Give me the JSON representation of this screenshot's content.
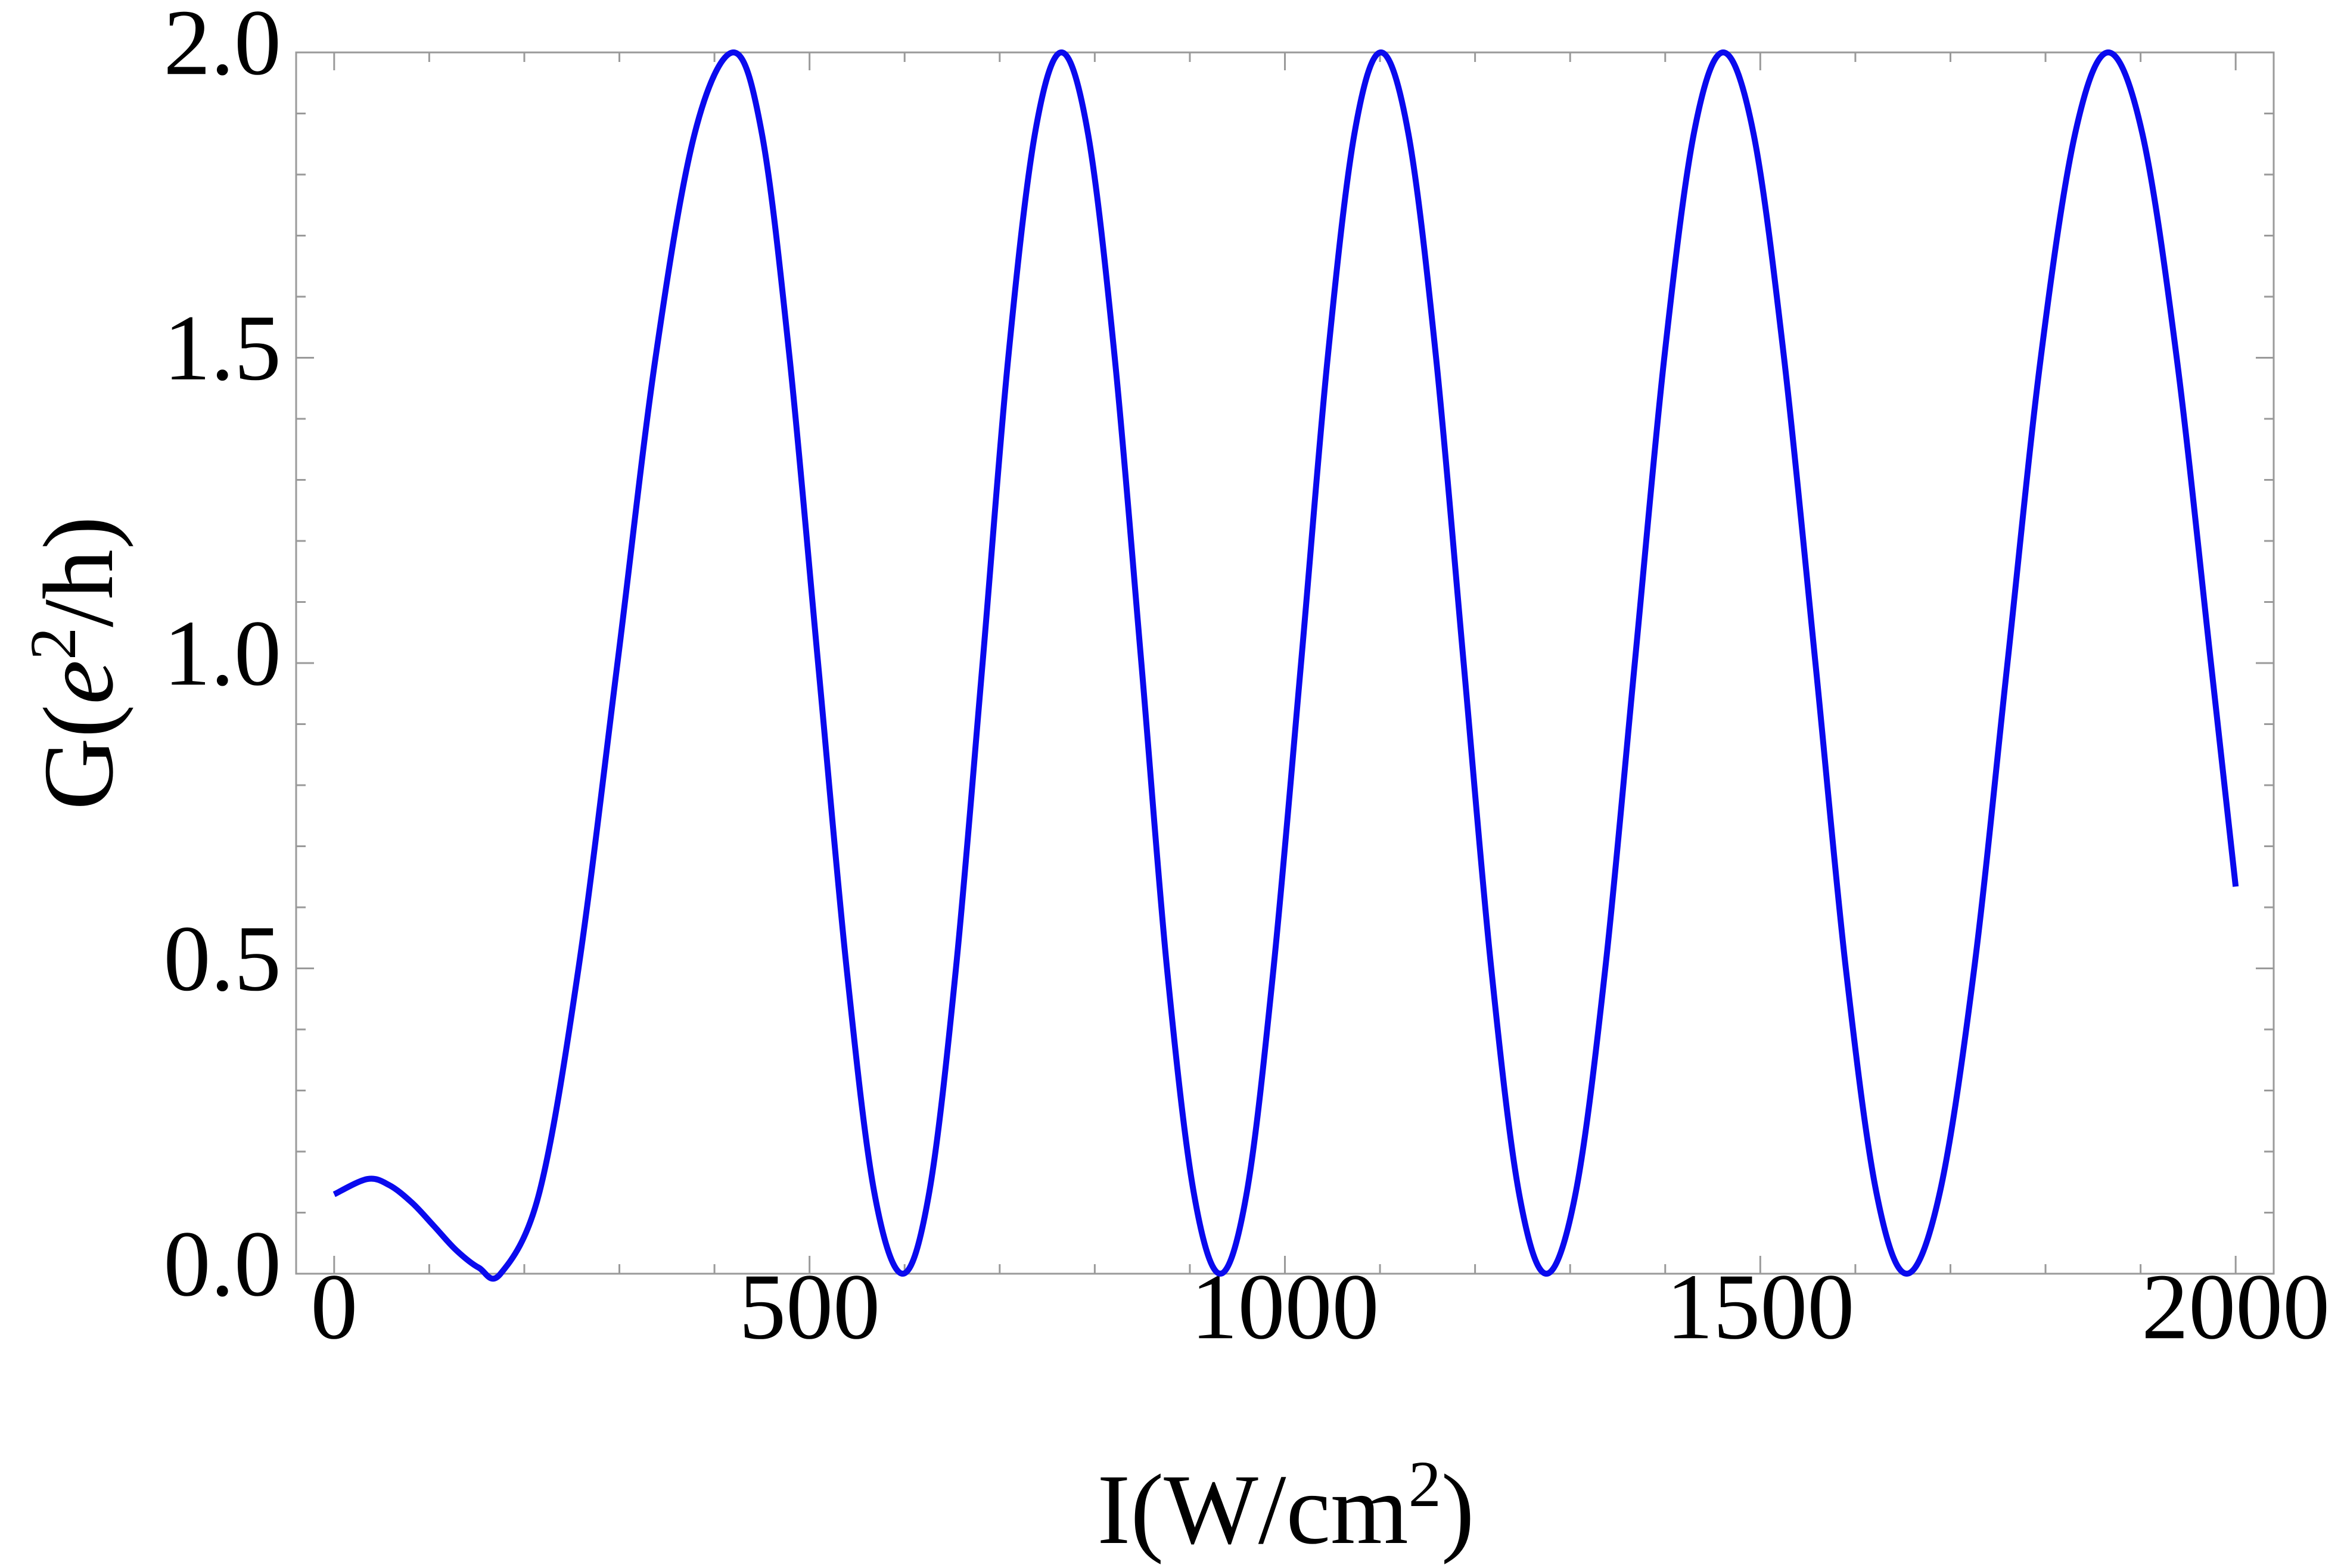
{
  "chart_data": {
    "type": "line",
    "xlabel": [
      "I(W/cm",
      "2",
      ")"
    ],
    "ylabel": [
      "G(",
      "e",
      "2",
      "/h)"
    ],
    "xlim": [
      -40,
      2040
    ],
    "ylim": [
      0,
      2
    ],
    "xticks": [
      0,
      500,
      1000,
      1500,
      2000
    ],
    "yticks": [
      {
        "value": 0,
        "label": "0.0"
      },
      0.5,
      {
        "value": 1,
        "label": "1.0"
      },
      1.5,
      {
        "value": 2,
        "label": "2.0"
      }
    ],
    "xminorticks": [
      100,
      200,
      300,
      400,
      600,
      700,
      800,
      900,
      1100,
      1200,
      1300,
      1400,
      1600,
      1700,
      1800,
      1900
    ],
    "yminorticks": [
      0.1,
      0.2,
      0.3,
      0.4,
      0.6,
      0.7,
      0.8,
      0.9,
      1.1,
      1.2,
      1.3,
      1.4,
      1.6,
      1.7,
      1.8,
      1.9
    ],
    "frame_ticks_all_sides": true,
    "series": [
      {
        "name": "G",
        "color": "#0a0aee",
        "x": [
          0,
          35,
          58,
          82,
          105,
          128,
          152,
          175,
          216,
          257,
          298,
          338,
          379,
          420,
          450,
          479,
          509,
          539,
          568,
          598,
          626,
          654,
          682,
          709,
          737,
          765,
          793,
          821,
          849,
          876,
          904,
          932,
          960,
          988,
          1017,
          1045,
          1073,
          1101,
          1130,
          1159,
          1188,
          1217,
          1246,
          1275,
          1306,
          1337,
          1368,
          1399,
          1430,
          1461,
          1493,
          1525,
          1558,
          1590,
          1622,
          1654,
          1689,
          1725,
          1760,
          1795,
          1831,
          1866,
          1902,
          1938,
          1974,
          2000
        ],
        "values": [
          0.13,
          0.155,
          0.145,
          0.116,
          0.078,
          0.039,
          0.01,
          0,
          0.134,
          0.5,
          1,
          1.5,
          1.866,
          2,
          1.866,
          1.5,
          1,
          0.5,
          0.134,
          0,
          0.134,
          0.5,
          1,
          1.5,
          1.866,
          2,
          1.866,
          1.5,
          1,
          0.5,
          0.134,
          0,
          0.134,
          0.5,
          1,
          1.5,
          1.866,
          2,
          1.866,
          1.5,
          1,
          0.5,
          0.134,
          0,
          0.134,
          0.5,
          1,
          1.5,
          1.866,
          2,
          1.866,
          1.5,
          1,
          0.5,
          0.134,
          0,
          0.134,
          0.5,
          1,
          1.5,
          1.866,
          2,
          1.866,
          1.5,
          1,
          0.634
        ]
      }
    ]
  }
}
